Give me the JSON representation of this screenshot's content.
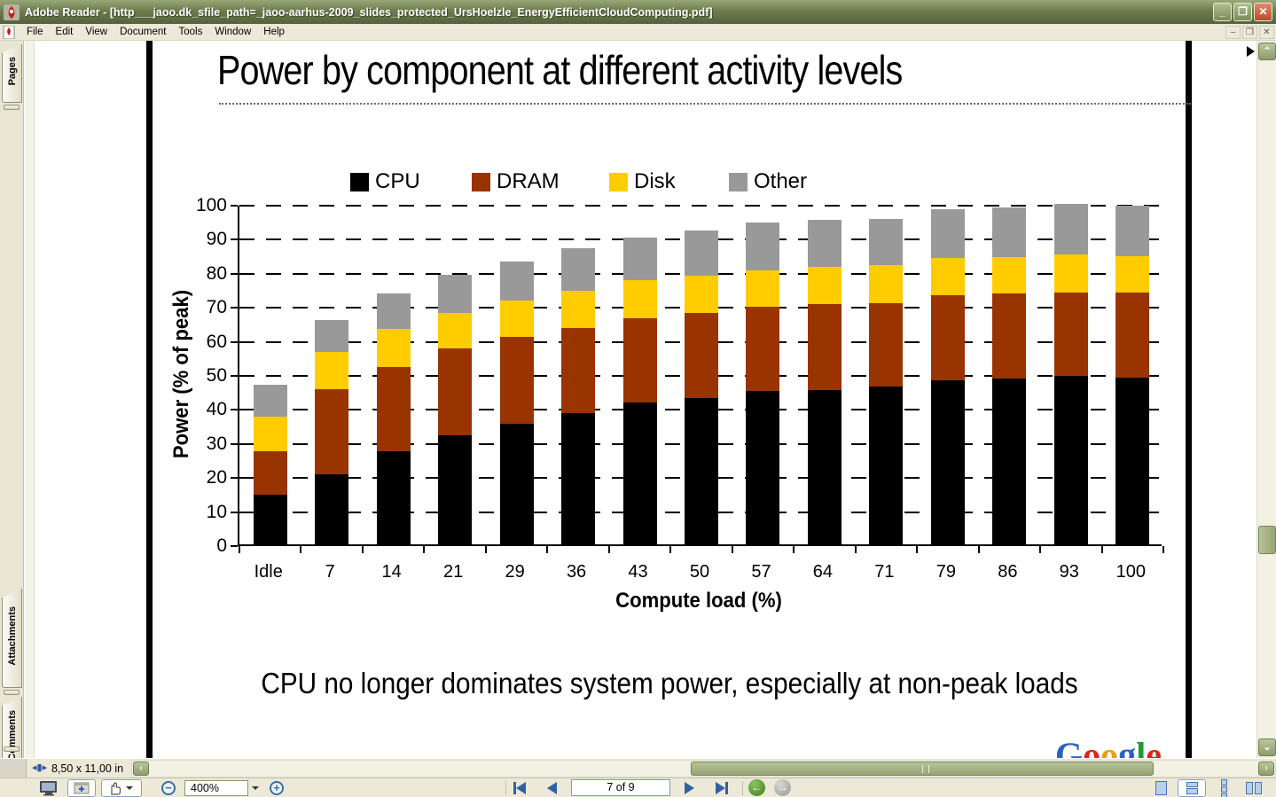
{
  "window": {
    "title": "Adobe Reader - [http___jaoo.dk_sfile_path=_jaoo-aarhus-2009_slides_protected_UrsHoelzle_EnergyEfficientCloudComputing.pdf]",
    "controls": {
      "minimize": "_",
      "restore": "❐",
      "close": "✕"
    }
  },
  "menu": {
    "items": [
      "File",
      "Edit",
      "View",
      "Document",
      "Tools",
      "Window",
      "Help"
    ]
  },
  "sidebar": {
    "tabs": [
      "Pages",
      "Attachments",
      "Comments"
    ]
  },
  "statusbar": {
    "page_size": "8,50 x 11,00 in"
  },
  "toolbar": {
    "zoom_level": "400%",
    "page_indicator": "7 of 9"
  },
  "slide": {
    "title": "Power by component at different activity levels",
    "caption": "CPU no longer dominates system power, especially at non-peak loads",
    "logo_letters": [
      {
        "ch": "G",
        "color": "#2b61c4"
      },
      {
        "ch": "o",
        "color": "#d6281e"
      },
      {
        "ch": "o",
        "color": "#e8a10c"
      },
      {
        "ch": "g",
        "color": "#2b61c4"
      },
      {
        "ch": "l",
        "color": "#1a9e30"
      },
      {
        "ch": "e",
        "color": "#d6281e"
      }
    ]
  },
  "chart_data": {
    "type": "bar",
    "stacked": true,
    "title": "Power by component at different activity levels",
    "xlabel": "Compute load (%)",
    "ylabel": "Power (% of peak)",
    "ylim": [
      0,
      100
    ],
    "ytick_step": 10,
    "grid": "dashed-horizontal",
    "legend_position": "top",
    "categories": [
      "Idle",
      "7",
      "14",
      "21",
      "29",
      "36",
      "43",
      "50",
      "57",
      "64",
      "71",
      "79",
      "86",
      "93",
      "100"
    ],
    "series": [
      {
        "name": "CPU",
        "color": "#000000",
        "values": [
          14.5,
          20.5,
          27.3,
          32.0,
          35.5,
          38.5,
          41.7,
          43.0,
          45.0,
          45.4,
          46.3,
          48.2,
          48.8,
          49.4,
          49.0
        ]
      },
      {
        "name": "DRAM",
        "color": "#993300",
        "values": [
          12.8,
          25.0,
          24.7,
          25.5,
          25.5,
          25.0,
          24.7,
          25.0,
          24.8,
          25.3,
          24.6,
          25.1,
          24.8,
          24.6,
          25.0
        ]
      },
      {
        "name": "Disk",
        "color": "#ffcc00",
        "values": [
          10.2,
          11.0,
          11.3,
          10.5,
          10.5,
          11.1,
          11.2,
          10.9,
          10.7,
          10.8,
          11.1,
          10.7,
          10.9,
          11.1,
          10.7
        ]
      },
      {
        "name": "Other",
        "color": "#999999",
        "values": [
          9.5,
          9.5,
          10.5,
          11.3,
          11.7,
          12.4,
          12.4,
          13.3,
          14.1,
          13.8,
          13.5,
          14.5,
          14.4,
          14.9,
          14.7
        ]
      }
    ]
  }
}
